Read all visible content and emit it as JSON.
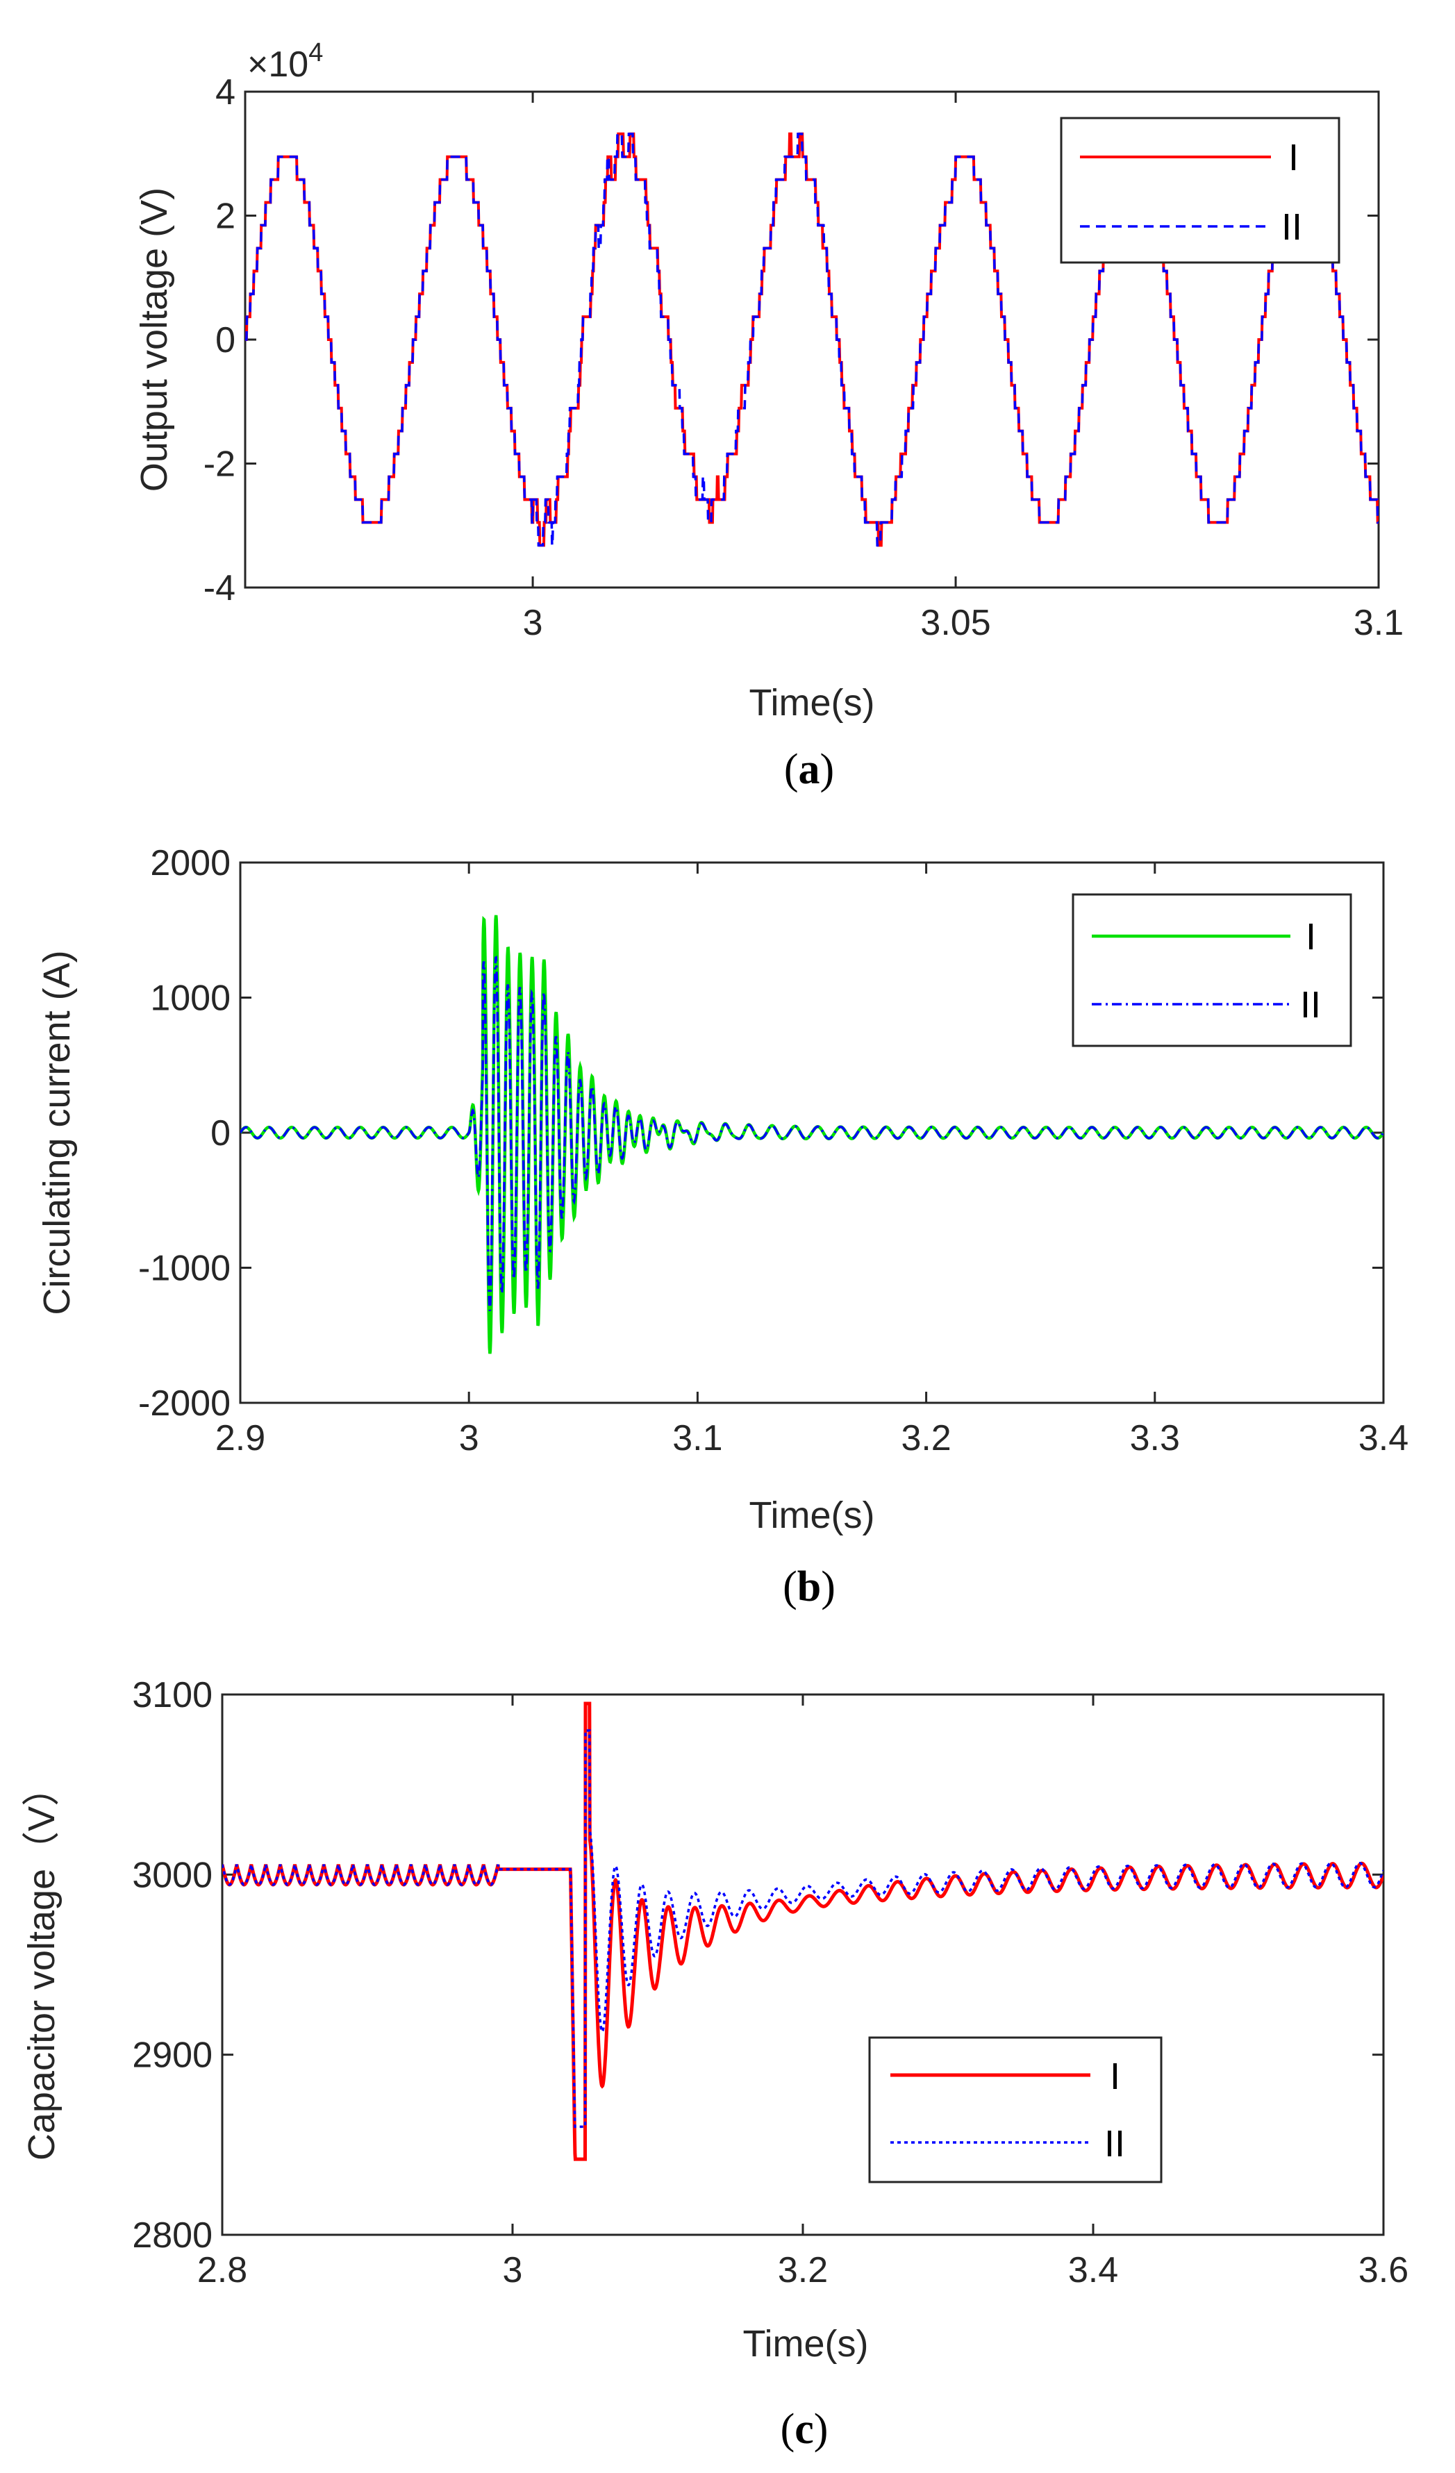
{
  "chart_data": [
    {
      "type": "line",
      "panel": "a",
      "caption_label": "a",
      "xlabel": "Time(s)",
      "ylabel": "Output voltage (V)",
      "y_exponent_prefix": "×10",
      "y_exponent_power": "4",
      "xlim": [
        2.966,
        3.1
      ],
      "ylim": [
        -4,
        4
      ],
      "xticks": [
        3,
        3.05,
        3.1
      ],
      "xtick_labels": [
        "3",
        "3.05",
        "3.1"
      ],
      "yticks": [
        -4,
        -2,
        0,
        2,
        4
      ],
      "ytick_labels": [
        "-4",
        "-2",
        "0",
        "2",
        "4"
      ],
      "legend": [
        "I",
        "II"
      ],
      "legend_position": "top-right",
      "signal": {
        "frequency_hz": 50,
        "amplitude": 2.95,
        "start_time": 2.966,
        "disturbance_start": 3.0,
        "levels": 16
      },
      "series": [
        {
          "name": "I",
          "color": "#ff0000",
          "style": "solid"
        },
        {
          "name": "II",
          "color": "#0000ff",
          "style": "dashed"
        }
      ]
    },
    {
      "type": "line",
      "panel": "b",
      "caption_label": "b",
      "xlabel": "Time(s)",
      "ylabel": "Circulating current (A)",
      "xlim": [
        2.9,
        3.4
      ],
      "ylim": [
        -2000,
        2000
      ],
      "xticks": [
        2.9,
        3.0,
        3.1,
        3.2,
        3.3,
        3.4
      ],
      "xtick_labels": [
        "2.9",
        "3",
        "3.1",
        "3.2",
        "3.3",
        "3.4"
      ],
      "yticks": [
        -2000,
        -1000,
        0,
        1000,
        2000
      ],
      "ytick_labels": [
        "-2000",
        "-1000",
        "0",
        "1000",
        "2000"
      ],
      "legend": [
        "I",
        "II"
      ],
      "legend_position": "top-right",
      "signal": {
        "baseline_ripple_amplitude": 40,
        "ripple_frequency_hz": 100,
        "disturbance_start": 3.0,
        "peak_I": 1500,
        "trough_I": -1580,
        "peak_II": 1200,
        "trough_II": -1350
      },
      "series": [
        {
          "name": "I",
          "color": "#00e000",
          "style": "solid"
        },
        {
          "name": "II",
          "color": "#0000ff",
          "style": "dashdot"
        }
      ]
    },
    {
      "type": "line",
      "panel": "c",
      "caption_label": "c",
      "xlabel": "Time(s)",
      "ylabel": "Capacitor voltage（V）",
      "xlim": [
        2.8,
        3.6
      ],
      "ylim": [
        2800,
        3100
      ],
      "xticks": [
        2.8,
        3.0,
        3.2,
        3.4,
        3.6
      ],
      "xtick_labels": [
        "2.8",
        "3",
        "3.2",
        "3.4",
        "3.6"
      ],
      "yticks": [
        2800,
        2900,
        3000,
        3100
      ],
      "ytick_labels": [
        "2800",
        "2900",
        "3000",
        "3100"
      ],
      "legend": [
        "I",
        "II"
      ],
      "legend_position": "bottom-right",
      "signal": {
        "nominal": 3000,
        "ripple_amplitude": 7,
        "ripple_frequency_hz": 50,
        "flat_start": 2.99,
        "disturbance_start": 3.04,
        "min_I": 2838,
        "max_I": 3095,
        "min_II": 2852,
        "max_II": 3080
      },
      "series": [
        {
          "name": "I",
          "color": "#ff0000",
          "style": "solid"
        },
        {
          "name": "II",
          "color": "#0000ff",
          "style": "dotted"
        }
      ]
    }
  ]
}
